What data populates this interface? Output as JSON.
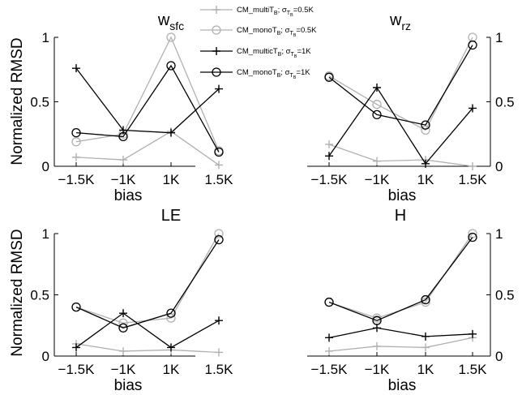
{
  "figure": {
    "ylabel": "Normalized RMSD",
    "xlabel": "bias",
    "legend": [
      {
        "base": "CM_multiT",
        "sub1": "B",
        "mid": "; σ",
        "sub2": "T",
        "sub3": "B",
        "tail": "=0.5K",
        "color": "#b0b0b0",
        "marker": "plus"
      },
      {
        "base": "CM_monoT",
        "sub1": "B",
        "mid": "; σ",
        "sub2": "T",
        "sub3": "B",
        "tail": "=0.5K",
        "color": "#b0b0b0",
        "marker": "circle"
      },
      {
        "base": "CM_multicT",
        "sub1": "B",
        "mid": "; σ",
        "sub2": "T",
        "sub3": "B",
        "tail": "=1K",
        "color": "#000000",
        "marker": "plus"
      },
      {
        "base": "CM_monoT",
        "sub1": "B",
        "mid": "; σ",
        "sub2": "T",
        "sub3": "B",
        "tail": "=1K",
        "color": "#000000",
        "marker": "circle"
      }
    ]
  },
  "chart_data": [
    {
      "type": "line",
      "title_main": "w",
      "title_sub": "sfc",
      "categories": [
        "−1.5K",
        "−1K",
        "1K",
        "1.5K"
      ],
      "ylim": [
        0,
        1
      ],
      "yticks": [
        "0",
        "0.5",
        "1"
      ],
      "yaxis": "left",
      "series": [
        {
          "name": "CM_multiT_B; σ=0.5K",
          "values": [
            0.07,
            0.05,
            0.27,
            0.01
          ]
        },
        {
          "name": "CM_monoT_B; σ=0.5K",
          "values": [
            0.19,
            0.25,
            1.0,
            0.12
          ]
        },
        {
          "name": "CM_multicT_B; σ=1K",
          "values": [
            0.76,
            0.28,
            0.26,
            0.6
          ]
        },
        {
          "name": "CM_monoT_B; σ=1K",
          "values": [
            0.26,
            0.23,
            0.78,
            0.11
          ]
        }
      ]
    },
    {
      "type": "line",
      "title_main": "w",
      "title_sub": "rz",
      "categories": [
        "−1.5K",
        "−1K",
        "1K",
        "1.5K"
      ],
      "ylim": [
        0,
        1
      ],
      "yticks": [
        "0",
        "0.5",
        "1"
      ],
      "yaxis": "right",
      "series": [
        {
          "name": "CM_multiT_B; σ=0.5K",
          "values": [
            0.17,
            0.04,
            0.05,
            0.0
          ]
        },
        {
          "name": "CM_monoT_B; σ=0.5K",
          "values": [
            0.7,
            0.48,
            0.28,
            1.0
          ]
        },
        {
          "name": "CM_multicT_B; σ=1K",
          "values": [
            0.08,
            0.61,
            0.02,
            0.45
          ]
        },
        {
          "name": "CM_monoT_B; σ=1K",
          "values": [
            0.69,
            0.4,
            0.32,
            0.94
          ]
        }
      ]
    },
    {
      "type": "line",
      "title_main": "LE",
      "title_sub": "",
      "categories": [
        "−1.5K",
        "−1K",
        "1K",
        "1.5K"
      ],
      "ylim": [
        0,
        1
      ],
      "yticks": [
        "0",
        "0.5",
        "1"
      ],
      "yaxis": "left",
      "series": [
        {
          "name": "CM_multiT_B; σ=0.5K",
          "values": [
            0.1,
            0.04,
            0.05,
            0.03
          ]
        },
        {
          "name": "CM_monoT_B; σ=0.5K",
          "values": [
            0.4,
            0.27,
            0.31,
            1.0
          ]
        },
        {
          "name": "CM_multicT_B; σ=1K",
          "values": [
            0.07,
            0.35,
            0.07,
            0.29
          ]
        },
        {
          "name": "CM_monoT_B; σ=1K",
          "values": [
            0.4,
            0.23,
            0.35,
            0.95
          ]
        }
      ]
    },
    {
      "type": "line",
      "title_main": "H",
      "title_sub": "",
      "categories": [
        "−1.5K",
        "−1K",
        "1K",
        "1.5K"
      ],
      "ylim": [
        0,
        1
      ],
      "yticks": [
        "0",
        "0.5",
        "1"
      ],
      "yaxis": "right",
      "series": [
        {
          "name": "CM_multiT_B; σ=0.5K",
          "values": [
            0.04,
            0.08,
            0.07,
            0.15
          ]
        },
        {
          "name": "CM_monoT_B; σ=0.5K",
          "values": [
            0.44,
            0.31,
            0.44,
            1.0
          ]
        },
        {
          "name": "CM_multicT_B; σ=1K",
          "values": [
            0.15,
            0.23,
            0.16,
            0.18
          ]
        },
        {
          "name": "CM_monoT_B; σ=1K",
          "values": [
            0.44,
            0.29,
            0.46,
            0.97
          ]
        }
      ]
    }
  ]
}
